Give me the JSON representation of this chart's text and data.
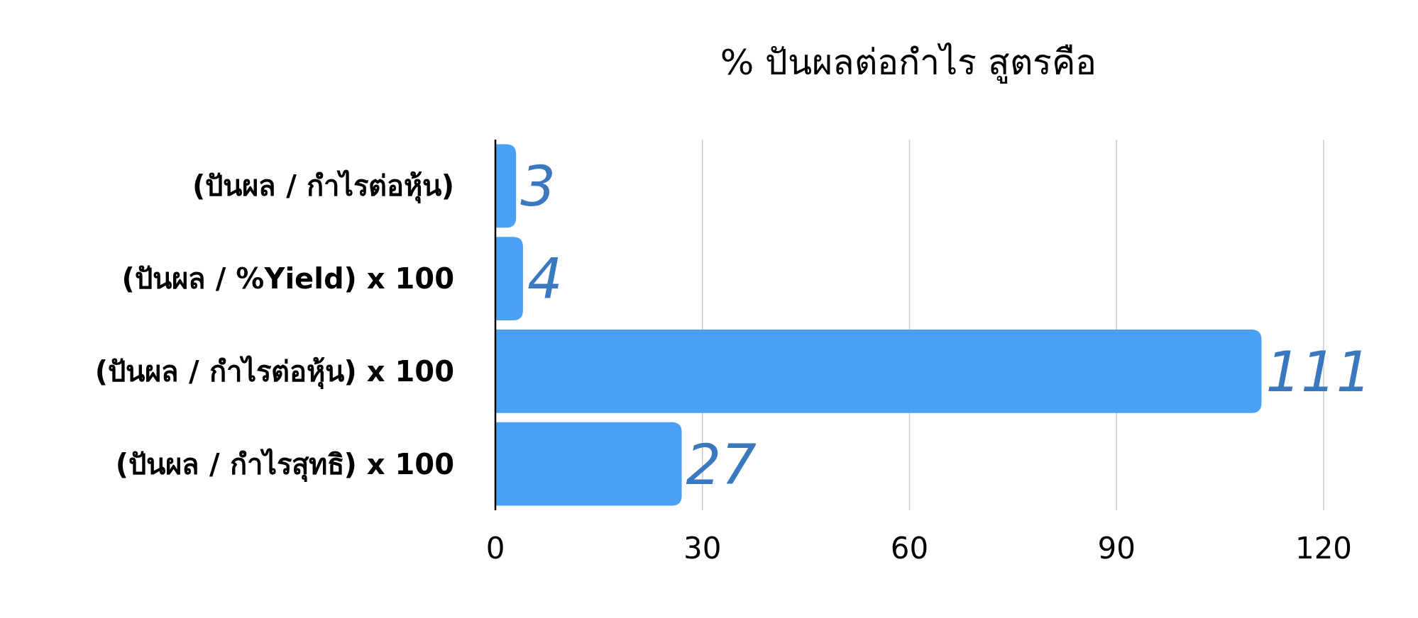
{
  "chart_data": {
    "type": "bar",
    "orientation": "horizontal",
    "title": "% ปันผลต่อกำไร สูตรคือ",
    "categories": [
      "(ปันผล / กำไรต่อหุ้น)",
      "(ปันผล / %Yield) x 100",
      "(ปันผล / กำไรต่อหุ้น) x 100",
      "(ปันผล / กำไรสุทธิ) x 100"
    ],
    "values": [
      3,
      4,
      111,
      27
    ],
    "color": "#4aa0f5",
    "xlim": [
      0,
      120
    ],
    "xticks": [
      0,
      30,
      60,
      90,
      120
    ],
    "grid": "x",
    "data_labels": true
  }
}
